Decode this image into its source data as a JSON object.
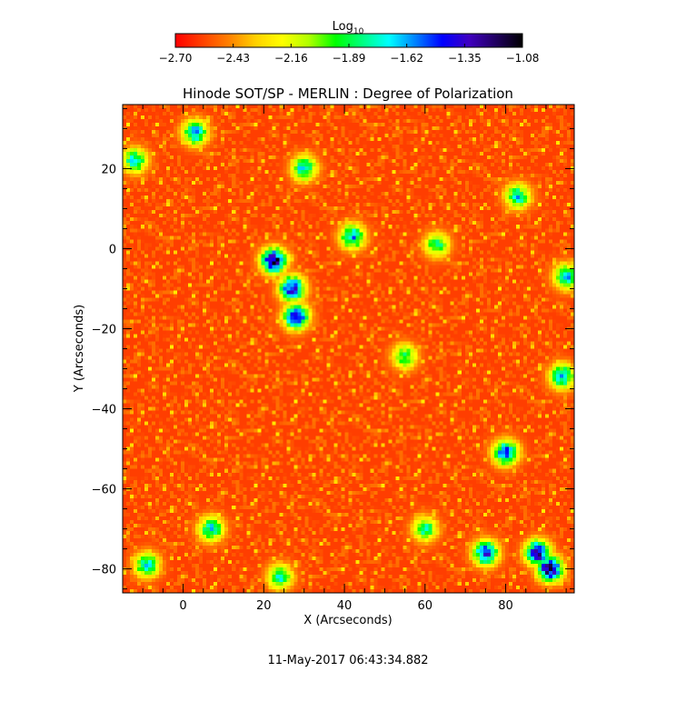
{
  "chart_data": {
    "type": "heatmap",
    "title": "Hinode SOT/SP - MERLIN : Degree of Polarization",
    "xlabel": "X (Arcseconds)",
    "ylabel": "Y (Arcseconds)",
    "xlim": [
      -15,
      97
    ],
    "ylim": [
      -86,
      36
    ],
    "x_ticks": [
      0,
      20,
      40,
      60,
      80
    ],
    "x_tick_labels": [
      "0",
      "20",
      "40",
      "60",
      "80"
    ],
    "y_ticks": [
      20,
      0,
      -20,
      -40,
      -60,
      -80
    ],
    "y_tick_labels": [
      "20",
      "0",
      "−20",
      "−40",
      "−60",
      "−80"
    ],
    "colorbar": {
      "label_main": "Log",
      "label_sub": "10",
      "range": [
        -2.7,
        -1.08
      ],
      "tick_values": [
        -2.7,
        -2.43,
        -2.16,
        -1.89,
        -1.62,
        -1.35,
        -1.08
      ],
      "tick_labels": [
        "−2.70",
        "−2.43",
        "−2.16",
        "−1.89",
        "−1.62",
        "−1.35",
        "−1.08"
      ],
      "colormap": [
        "#ff0000",
        "#ff4000",
        "#ff8000",
        "#ffd000",
        "#ffff00",
        "#b0ff00",
        "#00ff00",
        "#00ff80",
        "#00ffff",
        "#0080ff",
        "#0000ff",
        "#4000c0",
        "#200060",
        "#000000"
      ]
    },
    "background_level": -2.58,
    "features": [
      {
        "x": 22.5,
        "y": -3,
        "peak": -1.08
      },
      {
        "x": 27,
        "y": -10,
        "peak": -1.2
      },
      {
        "x": 28,
        "y": -17,
        "peak": -1.25
      },
      {
        "x": 91,
        "y": -80,
        "peak": -1.08
      },
      {
        "x": 88,
        "y": -76,
        "peak": -1.15
      },
      {
        "x": 75,
        "y": -76,
        "peak": -1.35
      },
      {
        "x": 3,
        "y": 29,
        "peak": -1.55
      },
      {
        "x": 30,
        "y": 20,
        "peak": -1.6
      },
      {
        "x": 42,
        "y": 3,
        "peak": -1.55
      },
      {
        "x": 83,
        "y": 13,
        "peak": -1.65
      },
      {
        "x": 95,
        "y": -7,
        "peak": -1.6
      },
      {
        "x": 94,
        "y": -32,
        "peak": -1.55
      },
      {
        "x": 80,
        "y": -51,
        "peak": -1.4
      },
      {
        "x": 60,
        "y": -70,
        "peak": -1.75
      },
      {
        "x": -9,
        "y": -79,
        "peak": -1.65
      },
      {
        "x": 7,
        "y": -70,
        "peak": -1.65
      },
      {
        "x": 24,
        "y": -82,
        "peak": -1.7
      },
      {
        "x": 55,
        "y": -27,
        "peak": -1.8
      },
      {
        "x": -12,
        "y": 22,
        "peak": -1.65
      },
      {
        "x": 63,
        "y": 1,
        "peak": -1.8
      }
    ]
  },
  "timestamp": "11-May-2017 06:43:34.882"
}
